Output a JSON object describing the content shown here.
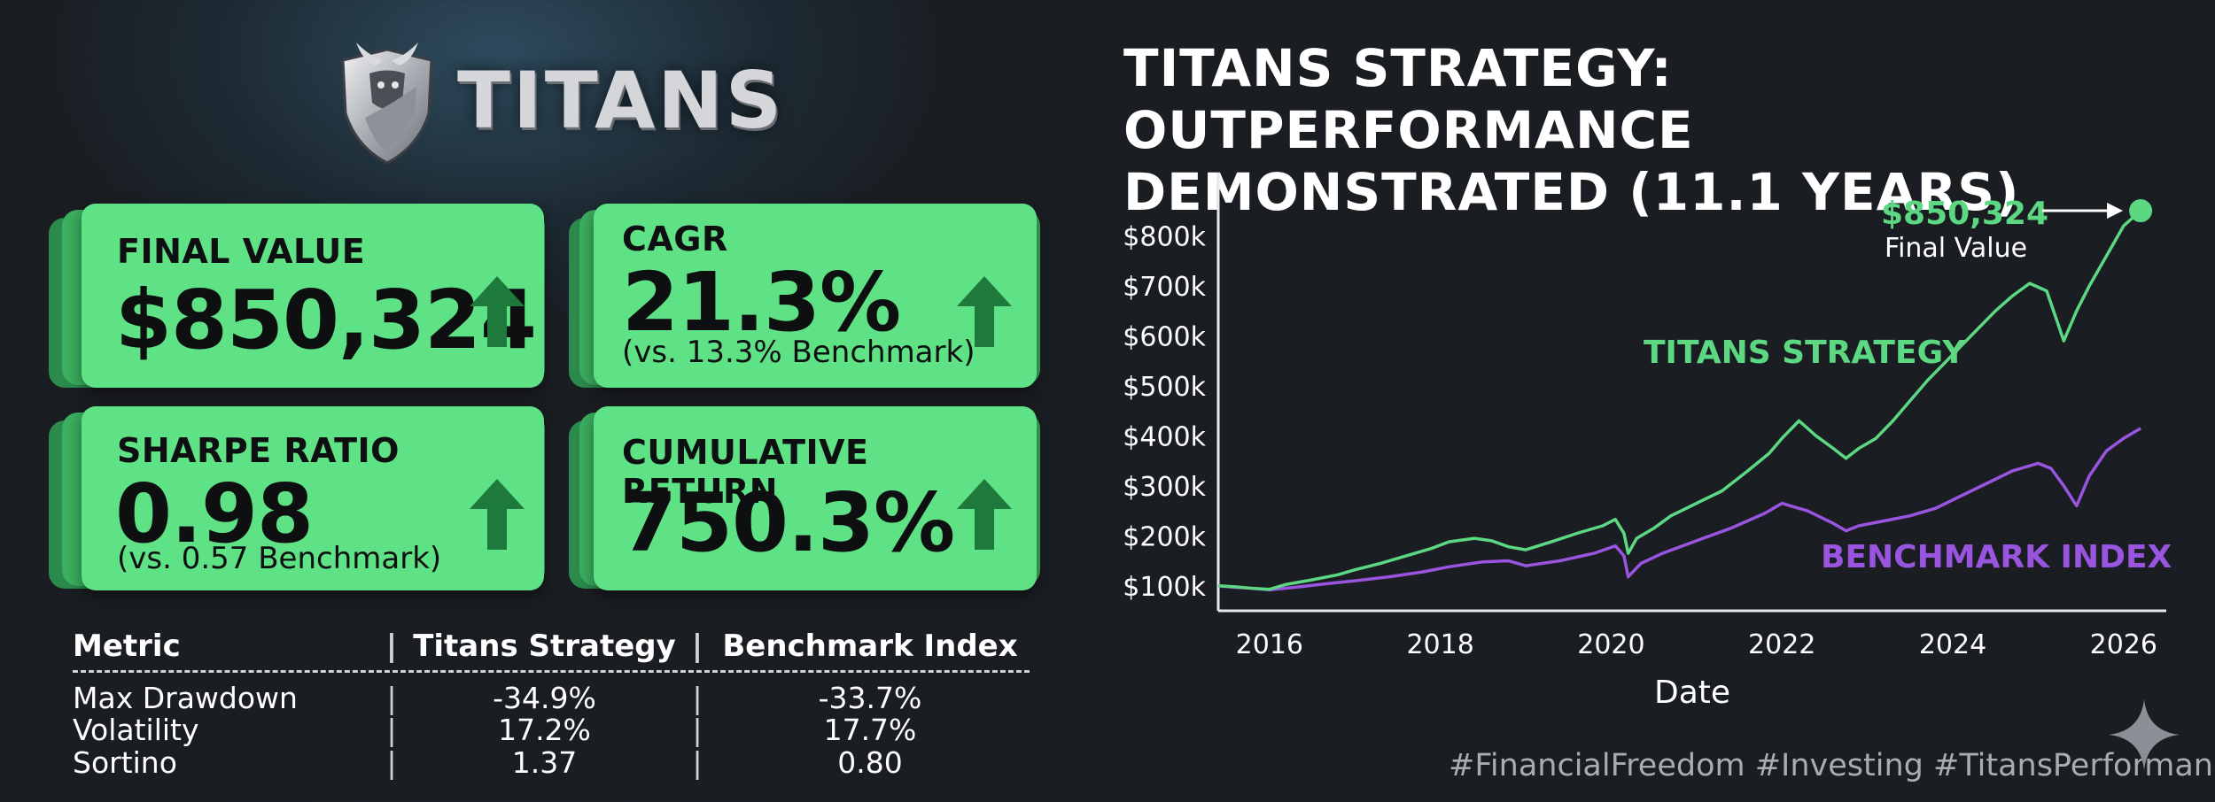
{
  "brand": {
    "name": "TITANS"
  },
  "cards": {
    "final_value": {
      "label": "FINAL VALUE",
      "value": "$850,324"
    },
    "cagr": {
      "label": "CAGR",
      "value": "21.3%",
      "note": "(vs. 13.3% Benchmark)"
    },
    "sharpe": {
      "label": "SHARPE RATIO",
      "value": "0.98",
      "note": "(vs. 0.57 Benchmark)"
    },
    "cumulative": {
      "label": "CUMULATIVE RETURN",
      "value": "750.3%"
    }
  },
  "metrics_table": {
    "headers": [
      "Metric",
      "Titans Strategy",
      "Benchmark Index"
    ],
    "separator": "|",
    "rows": [
      [
        "Max Drawdown",
        "-34.9%",
        "-33.7%"
      ],
      [
        "Volatility",
        "17.2%",
        "17.7%"
      ],
      [
        "Sortino",
        "1.37",
        "0.80"
      ]
    ]
  },
  "chart_data": {
    "type": "line",
    "title": "TITANS STRATEGY: OUTPERFORMANCE DEMONSTRATED (11.1 YEARS)",
    "xlabel": "Date",
    "ylabel": "",
    "xlim": [
      2015.4,
      2026.5
    ],
    "ylim": [
      50000,
      900000
    ],
    "x_ticks": [
      2016,
      2018,
      2020,
      2022,
      2024,
      2026
    ],
    "y_ticks": [
      100000,
      200000,
      300000,
      400000,
      500000,
      600000,
      700000,
      800000
    ],
    "y_tick_labels": [
      "$100k",
      "$200k",
      "$300k",
      "$400k",
      "$500k",
      "$600k",
      "$700k",
      "$800k"
    ],
    "grid": false,
    "series": [
      {
        "name": "TITANS STRATEGY",
        "color": "#5cd882",
        "x": [
          2015.4,
          2015.6,
          2015.8,
          2016.0,
          2016.2,
          2016.5,
          2016.8,
          2017.0,
          2017.3,
          2017.6,
          2017.9,
          2018.1,
          2018.4,
          2018.6,
          2018.8,
          2019.0,
          2019.3,
          2019.6,
          2019.9,
          2020.05,
          2020.15,
          2020.2,
          2020.3,
          2020.5,
          2020.7,
          2021.0,
          2021.3,
          2021.6,
          2021.85,
          2022.0,
          2022.2,
          2022.4,
          2022.6,
          2022.75,
          2022.9,
          2023.1,
          2023.3,
          2023.5,
          2023.7,
          2023.9,
          2024.1,
          2024.3,
          2024.5,
          2024.7,
          2024.9,
          2025.1,
          2025.2,
          2025.3,
          2025.45,
          2025.6,
          2025.8,
          2026.0,
          2026.2
        ],
        "y": [
          100000,
          98000,
          95000,
          93000,
          103000,
          112000,
          122000,
          132000,
          145000,
          160000,
          175000,
          188000,
          195000,
          190000,
          178000,
          172000,
          188000,
          205000,
          220000,
          233000,
          205000,
          165000,
          195000,
          215000,
          240000,
          265000,
          290000,
          330000,
          365000,
          395000,
          430000,
          400000,
          375000,
          355000,
          375000,
          395000,
          430000,
          470000,
          510000,
          545000,
          580000,
          615000,
          650000,
          680000,
          705000,
          690000,
          640000,
          590000,
          650000,
          700000,
          760000,
          820000,
          850324
        ]
      },
      {
        "name": "BENCHMARK INDEX",
        "color": "#9a55e0",
        "x": [
          2015.4,
          2015.6,
          2015.8,
          2016.0,
          2016.3,
          2016.6,
          2017.0,
          2017.4,
          2017.8,
          2018.1,
          2018.5,
          2018.8,
          2019.0,
          2019.4,
          2019.8,
          2020.05,
          2020.15,
          2020.2,
          2020.35,
          2020.6,
          2021.0,
          2021.4,
          2021.8,
          2022.0,
          2022.3,
          2022.6,
          2022.75,
          2022.9,
          2023.2,
          2023.5,
          2023.8,
          2024.1,
          2024.4,
          2024.7,
          2025.0,
          2025.15,
          2025.3,
          2025.45,
          2025.6,
          2025.8,
          2026.0,
          2026.2
        ],
        "y": [
          100000,
          97000,
          95000,
          92000,
          97000,
          103000,
          110000,
          118000,
          128000,
          138000,
          148000,
          150000,
          140000,
          150000,
          165000,
          180000,
          160000,
          118000,
          145000,
          165000,
          190000,
          215000,
          245000,
          265000,
          250000,
          225000,
          210000,
          220000,
          230000,
          240000,
          255000,
          280000,
          305000,
          330000,
          345000,
          335000,
          300000,
          260000,
          320000,
          370000,
          395000,
          415000
        ]
      }
    ],
    "annotations": [
      {
        "text": "$850,324",
        "subtext": "Final Value",
        "x": 2026.2,
        "y": 850324
      },
      {
        "text": "TITANS STRATEGY",
        "series": 0
      },
      {
        "text": "BENCHMARK INDEX",
        "series": 1
      }
    ]
  },
  "footer": {
    "hashtags": "#FinancialFreedom #Investing #TitansPerformance"
  },
  "colors": {
    "accent_green": "#5fe285",
    "card_shadow_dark": "#2c8a4c",
    "arrow_green": "#1e7a3c",
    "background": "#1a1d22"
  },
  "icons": {
    "logo": "bull-shield-icon",
    "arrow": "arrow-up-icon",
    "watermark": "sparkle-icon"
  }
}
